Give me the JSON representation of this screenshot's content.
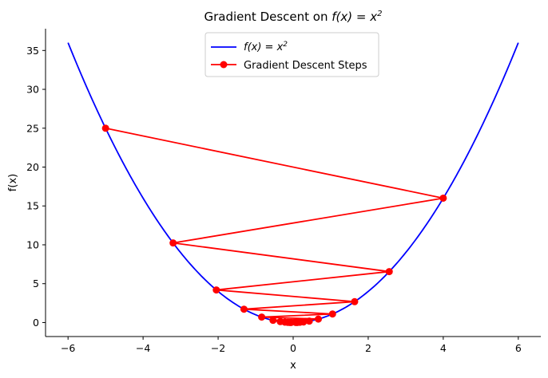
{
  "chart_data": {
    "type": "line",
    "title": "Gradient Descent on f(x) = x²",
    "title_parts": {
      "prefix": "Gradient Descent on ",
      "math": "f(x) = x",
      "sup": "2"
    },
    "xlabel": "x",
    "ylabel": "f(x)",
    "xlim": [
      -6.6,
      6.6
    ],
    "ylim": [
      -1.8,
      37.8
    ],
    "x_ticks": [
      -6,
      -4,
      -2,
      0,
      2,
      4,
      6
    ],
    "x_tick_labels": [
      "−6",
      "−4",
      "−2",
      "0",
      "2",
      "4",
      "6"
    ],
    "y_ticks": [
      0,
      5,
      10,
      15,
      20,
      25,
      30,
      35
    ],
    "y_tick_labels": [
      "0",
      "5",
      "10",
      "15",
      "20",
      "25",
      "30",
      "35"
    ],
    "grid": false,
    "legend_position": "top-center",
    "series": [
      {
        "name": "f(x) = x²",
        "name_parts": {
          "math": "f(x) = x",
          "sup": "2"
        },
        "kind": "curve",
        "function": "x^2",
        "domain": [
          -6,
          6
        ],
        "color": "#0000ff"
      },
      {
        "name": "Gradient Descent Steps",
        "kind": "line-with-markers",
        "color": "#ff0000",
        "x": [
          -5,
          4,
          -3.2,
          2.56,
          -2.048,
          1.638,
          -1.311,
          1.049,
          -0.839,
          0.671,
          -0.537,
          0.429,
          -0.344,
          0.275,
          -0.22,
          0.176,
          -0.141,
          0.113,
          -0.09,
          0.072,
          -0.058
        ],
        "y": [
          25,
          16,
          10.24,
          6.554,
          4.194,
          2.684,
          1.718,
          1.1,
          0.704,
          0.45,
          0.288,
          0.184,
          0.118,
          0.076,
          0.048,
          0.031,
          0.02,
          0.013,
          0.008,
          0.005,
          0.003
        ]
      }
    ]
  }
}
